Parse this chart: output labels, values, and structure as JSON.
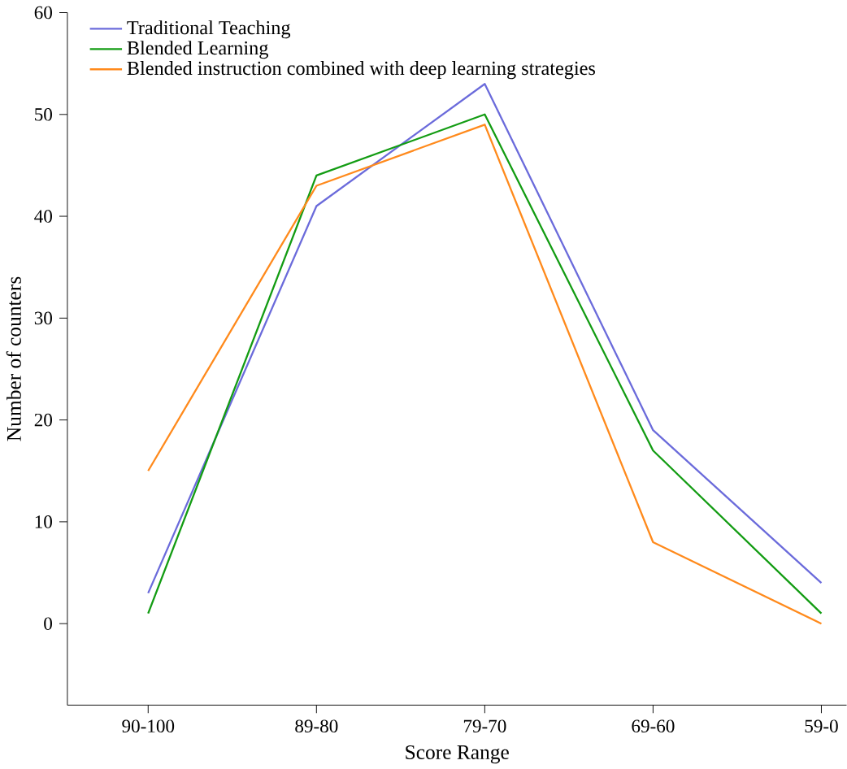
{
  "chart_data": {
    "type": "line",
    "xlabel": "Score Range",
    "ylabel": "Number of counters",
    "categories": [
      "90-100",
      "89-80",
      "79-70",
      "69-60",
      "59-0"
    ],
    "series": [
      {
        "name": "Traditional Teaching",
        "color": "#6b6bdb",
        "values": [
          3,
          41,
          53,
          19,
          4
        ]
      },
      {
        "name": "Blended Learning",
        "color": "#139c13",
        "values": [
          1,
          44,
          50,
          17,
          1
        ]
      },
      {
        "name": "Blended instruction combined with deep learning strategies",
        "color": "#ff8a1c",
        "values": [
          15,
          43,
          49,
          8,
          0
        ]
      }
    ],
    "ylim": [
      -8,
      60
    ],
    "yticks": [
      0,
      10,
      20,
      30,
      40,
      50,
      60
    ],
    "grid": false,
    "legend": "top left",
    "marker": "none",
    "line_style": "solid"
  }
}
